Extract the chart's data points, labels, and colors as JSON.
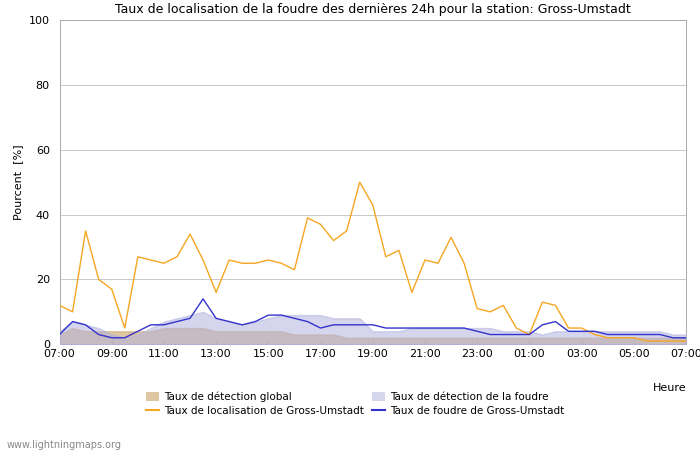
{
  "title": "Taux de localisation de la foudre des dernières 24h pour la station: Gross-Umstadt",
  "xlabel": "Heure",
  "ylabel": "Pourcent  [%]",
  "ylim": [
    0,
    100
  ],
  "yticks": [
    0,
    20,
    40,
    60,
    80,
    100
  ],
  "watermark": "www.lightningmaps.org",
  "x_labels": [
    "07:00",
    "09:00",
    "11:00",
    "13:00",
    "15:00",
    "17:00",
    "19:00",
    "21:00",
    "23:00",
    "01:00",
    "03:00",
    "05:00",
    "07:00"
  ],
  "detection_global": [
    3,
    5,
    4,
    4,
    4,
    4,
    4,
    4,
    5,
    5,
    5,
    5,
    4,
    4,
    4,
    4,
    4,
    4,
    3,
    3,
    3,
    3,
    2,
    2,
    2,
    2,
    2,
    2,
    2,
    2,
    2,
    2,
    2,
    2,
    2,
    2,
    2,
    2,
    2,
    2,
    2,
    2,
    2,
    2,
    2,
    2,
    2,
    2,
    2
  ],
  "detection_foudre": [
    4,
    7,
    6,
    5,
    3,
    2,
    3,
    5,
    7,
    8,
    9,
    10,
    8,
    7,
    6,
    7,
    8,
    9,
    9,
    9,
    9,
    8,
    8,
    8,
    4,
    4,
    4,
    5,
    5,
    5,
    5,
    5,
    5,
    5,
    4,
    4,
    4,
    3,
    4,
    4,
    4,
    4,
    4,
    4,
    4,
    4,
    4,
    3,
    3
  ],
  "localisation_gross": [
    12,
    10,
    35,
    20,
    17,
    5,
    27,
    26,
    25,
    27,
    34,
    26,
    16,
    26,
    25,
    25,
    26,
    25,
    23,
    39,
    37,
    32,
    35,
    50,
    43,
    27,
    29,
    16,
    26,
    25,
    33,
    25,
    11,
    10,
    12,
    5,
    3,
    13,
    12,
    5,
    5,
    3,
    2,
    2,
    2,
    1,
    1,
    1,
    1
  ],
  "foudre_gross": [
    3,
    7,
    6,
    3,
    2,
    2,
    4,
    6,
    6,
    7,
    8,
    14,
    8,
    7,
    6,
    7,
    9,
    9,
    8,
    7,
    5,
    6,
    6,
    6,
    6,
    5,
    5,
    5,
    5,
    5,
    5,
    5,
    4,
    3,
    3,
    3,
    3,
    6,
    7,
    4,
    4,
    4,
    3,
    3,
    3,
    3,
    3,
    2,
    2
  ],
  "color_localisation": "#f5a623",
  "color_foudre": "#3333cc",
  "color_detection_global_fill": "#d4b483",
  "color_detection_foudre_fill": "#b3b3e0",
  "background_color": "#ffffff",
  "grid_color": "#c8c8c8",
  "n_points": 49,
  "legend_row1_left": "Taux de détection global",
  "legend_row1_right": "Taux de localisation de Gross-Umstadt",
  "legend_row2_left": "Taux de détection de la foudre",
  "legend_row2_right": "Taux de foudre de Gross-Umstadt"
}
